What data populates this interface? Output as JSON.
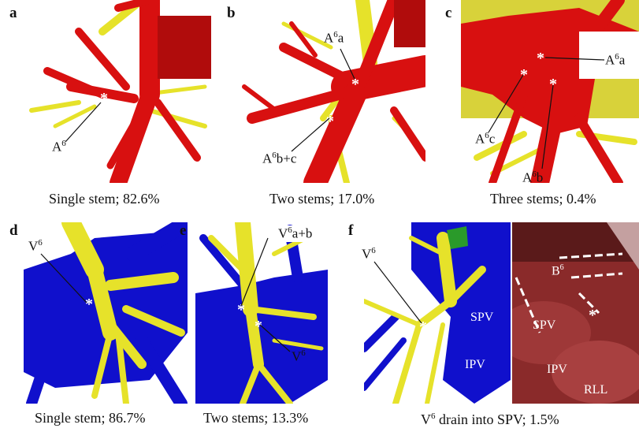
{
  "panels": {
    "a": {
      "label": "a",
      "caption_pre": "",
      "caption": "Single stem; 82.6%",
      "annot": [
        {
          "base": "A",
          "sup": "6",
          "rest": ""
        }
      ]
    },
    "b": {
      "label": "b",
      "caption_pre": "",
      "caption": "Two stems; 17.0%",
      "annot": [
        {
          "base": "A",
          "sup": "6",
          "rest": "a"
        },
        {
          "base": "A",
          "sup": "6",
          "rest": "b+c"
        }
      ]
    },
    "c": {
      "label": "c",
      "caption_pre": "",
      "caption": "Three stems; 0.4%",
      "annot": [
        {
          "base": "A",
          "sup": "6",
          "rest": "a"
        },
        {
          "base": "A",
          "sup": "6",
          "rest": "c"
        },
        {
          "base": "A",
          "sup": "6",
          "rest": "b"
        }
      ]
    },
    "d": {
      "label": "d",
      "caption_pre": "",
      "caption": "Single stem; 86.7%",
      "annot": [
        {
          "base": "V",
          "sup": "6",
          "rest": ""
        }
      ]
    },
    "e": {
      "label": "e",
      "caption_pre": "",
      "caption": "Two stems; 13.3%",
      "annot": [
        {
          "base": "V",
          "sup": "6",
          "rest": "a+b"
        },
        {
          "base": "V",
          "sup": "6",
          "rest": ""
        }
      ]
    },
    "f": {
      "label": "f",
      "caption_base": "V",
      "caption_sup": "6",
      "caption_rest": " drain into SPV; 1.5%",
      "annot": [
        {
          "base": "V",
          "sup": "6",
          "rest": ""
        }
      ],
      "vessel_labels": [
        "SPV",
        "IPV"
      ],
      "photo_labels": {
        "b6_base": "B",
        "b6_sup": "6",
        "spv": "SPV",
        "ipv": "IPV",
        "rll": "RLL"
      }
    }
  },
  "star": "*",
  "colors": {
    "artery": "#d81010",
    "vein": "#1010cc",
    "bronchus": "#e6e22a",
    "photo": "#8a2a2a"
  }
}
